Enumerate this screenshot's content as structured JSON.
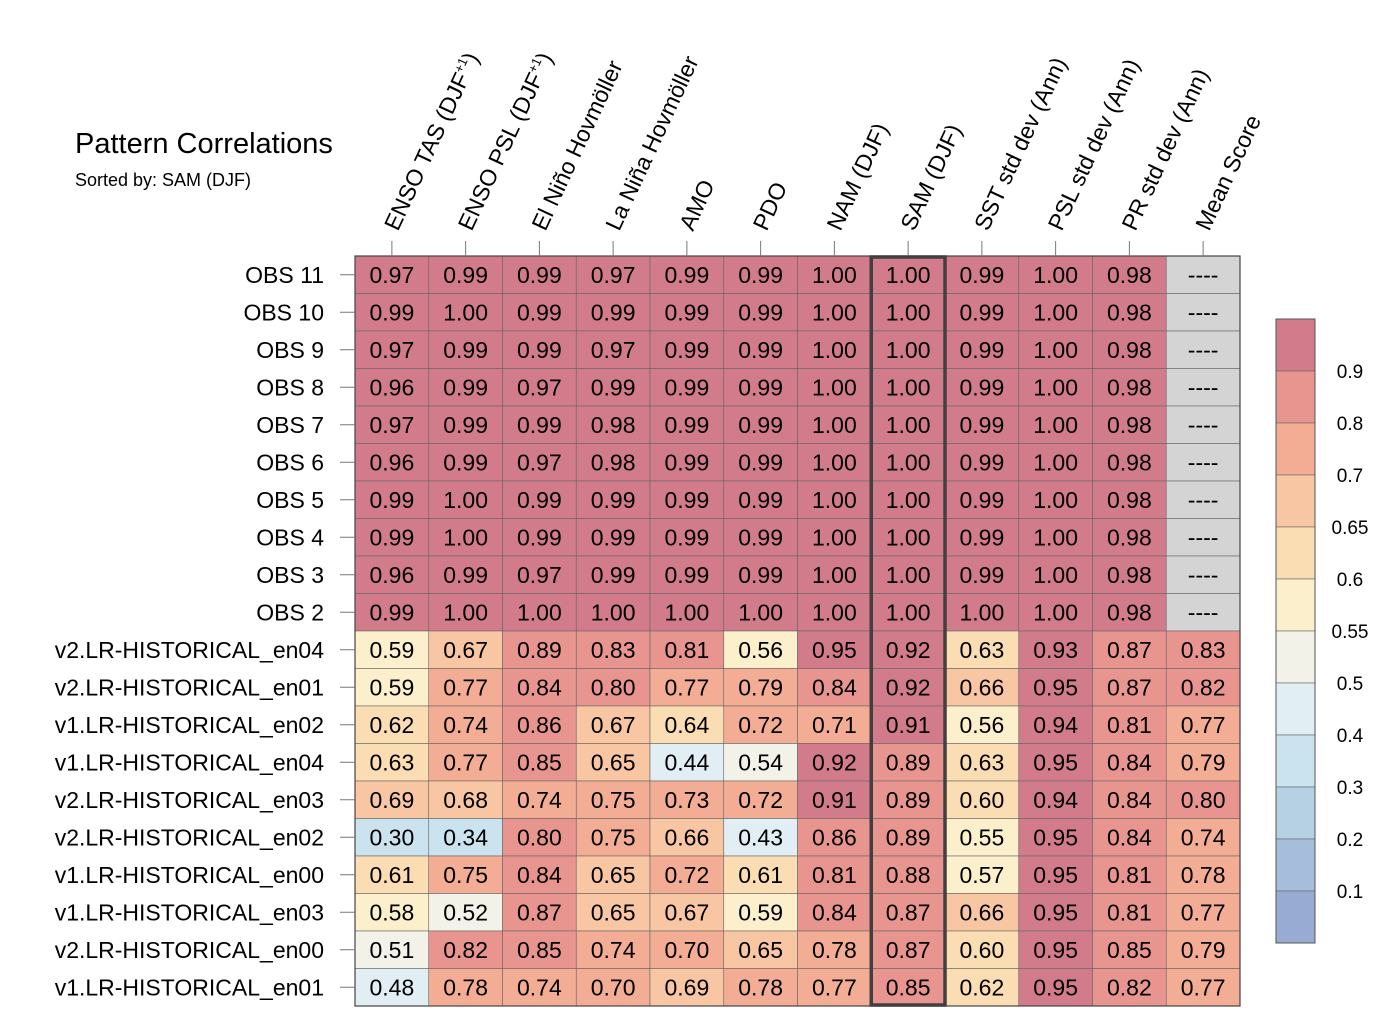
{
  "chart_data": {
    "type": "heatmap",
    "title": "Pattern Correlations",
    "subtitle": "Sorted by: SAM (DJF)",
    "highlighted_column": "SAM (DJF)",
    "columns": [
      {
        "pre": "ENSO TAS (DJF",
        "sup": "+1",
        "post": ")"
      },
      {
        "pre": "ENSO PSL (DJF",
        "sup": "+1",
        "post": ")"
      },
      {
        "pre": "El Niño Hovmöller",
        "sup": "",
        "post": ""
      },
      {
        "pre": "La Niña Hovmöller",
        "sup": "",
        "post": ""
      },
      {
        "pre": "AMO",
        "sup": "",
        "post": ""
      },
      {
        "pre": "PDO",
        "sup": "",
        "post": ""
      },
      {
        "pre": "NAM (DJF)",
        "sup": "",
        "post": ""
      },
      {
        "pre": "SAM (DJF)",
        "sup": "",
        "post": ""
      },
      {
        "pre": "SST std dev (Ann)",
        "sup": "",
        "post": ""
      },
      {
        "pre": "PSL std dev (Ann)",
        "sup": "",
        "post": ""
      },
      {
        "pre": "PR std dev (Ann)",
        "sup": "",
        "post": ""
      },
      {
        "pre": "Mean Score",
        "sup": "",
        "post": ""
      }
    ],
    "rows": [
      {
        "name": "OBS 11",
        "values": [
          "0.97",
          "0.99",
          "0.99",
          "0.97",
          "0.99",
          "0.99",
          "1.00",
          "1.00",
          "0.99",
          "1.00",
          "0.98",
          "----"
        ]
      },
      {
        "name": "OBS 10",
        "values": [
          "0.99",
          "1.00",
          "0.99",
          "0.99",
          "0.99",
          "0.99",
          "1.00",
          "1.00",
          "0.99",
          "1.00",
          "0.98",
          "----"
        ]
      },
      {
        "name": "OBS 9",
        "values": [
          "0.97",
          "0.99",
          "0.99",
          "0.97",
          "0.99",
          "0.99",
          "1.00",
          "1.00",
          "0.99",
          "1.00",
          "0.98",
          "----"
        ]
      },
      {
        "name": "OBS 8",
        "values": [
          "0.96",
          "0.99",
          "0.97",
          "0.99",
          "0.99",
          "0.99",
          "1.00",
          "1.00",
          "0.99",
          "1.00",
          "0.98",
          "----"
        ]
      },
      {
        "name": "OBS 7",
        "values": [
          "0.97",
          "0.99",
          "0.99",
          "0.98",
          "0.99",
          "0.99",
          "1.00",
          "1.00",
          "0.99",
          "1.00",
          "0.98",
          "----"
        ]
      },
      {
        "name": "OBS 6",
        "values": [
          "0.96",
          "0.99",
          "0.97",
          "0.98",
          "0.99",
          "0.99",
          "1.00",
          "1.00",
          "0.99",
          "1.00",
          "0.98",
          "----"
        ]
      },
      {
        "name": "OBS 5",
        "values": [
          "0.99",
          "1.00",
          "0.99",
          "0.99",
          "0.99",
          "0.99",
          "1.00",
          "1.00",
          "0.99",
          "1.00",
          "0.98",
          "----"
        ]
      },
      {
        "name": "OBS 4",
        "values": [
          "0.99",
          "1.00",
          "0.99",
          "0.99",
          "0.99",
          "0.99",
          "1.00",
          "1.00",
          "0.99",
          "1.00",
          "0.98",
          "----"
        ]
      },
      {
        "name": "OBS 3",
        "values": [
          "0.96",
          "0.99",
          "0.97",
          "0.99",
          "0.99",
          "0.99",
          "1.00",
          "1.00",
          "0.99",
          "1.00",
          "0.98",
          "----"
        ]
      },
      {
        "name": "OBS 2",
        "values": [
          "0.99",
          "1.00",
          "1.00",
          "1.00",
          "1.00",
          "1.00",
          "1.00",
          "1.00",
          "1.00",
          "1.00",
          "0.98",
          "----"
        ]
      },
      {
        "name": "v2.LR-HISTORICAL_en04",
        "values": [
          "0.59",
          "0.67",
          "0.89",
          "0.83",
          "0.81",
          "0.56",
          "0.95",
          "0.92",
          "0.63",
          "0.93",
          "0.87",
          "0.83"
        ]
      },
      {
        "name": "v2.LR-HISTORICAL_en01",
        "values": [
          "0.59",
          "0.77",
          "0.84",
          "0.80",
          "0.77",
          "0.79",
          "0.84",
          "0.92",
          "0.66",
          "0.95",
          "0.87",
          "0.82"
        ]
      },
      {
        "name": "v1.LR-HISTORICAL_en02",
        "values": [
          "0.62",
          "0.74",
          "0.86",
          "0.67",
          "0.64",
          "0.72",
          "0.71",
          "0.91",
          "0.56",
          "0.94",
          "0.81",
          "0.77"
        ]
      },
      {
        "name": "v1.LR-HISTORICAL_en04",
        "values": [
          "0.63",
          "0.77",
          "0.85",
          "0.65",
          "0.44",
          "0.54",
          "0.92",
          "0.89",
          "0.63",
          "0.95",
          "0.84",
          "0.79"
        ]
      },
      {
        "name": "v2.LR-HISTORICAL_en03",
        "values": [
          "0.69",
          "0.68",
          "0.74",
          "0.75",
          "0.73",
          "0.72",
          "0.91",
          "0.89",
          "0.60",
          "0.94",
          "0.84",
          "0.80"
        ]
      },
      {
        "name": "v2.LR-HISTORICAL_en02",
        "values": [
          "0.30",
          "0.34",
          "0.80",
          "0.75",
          "0.66",
          "0.43",
          "0.86",
          "0.89",
          "0.55",
          "0.95",
          "0.84",
          "0.74"
        ]
      },
      {
        "name": "v1.LR-HISTORICAL_en00",
        "values": [
          "0.61",
          "0.75",
          "0.84",
          "0.65",
          "0.72",
          "0.61",
          "0.81",
          "0.88",
          "0.57",
          "0.95",
          "0.81",
          "0.78"
        ]
      },
      {
        "name": "v1.LR-HISTORICAL_en03",
        "values": [
          "0.58",
          "0.52",
          "0.87",
          "0.65",
          "0.67",
          "0.59",
          "0.84",
          "0.87",
          "0.66",
          "0.95",
          "0.81",
          "0.77"
        ]
      },
      {
        "name": "v2.LR-HISTORICAL_en00",
        "values": [
          "0.51",
          "0.82",
          "0.85",
          "0.74",
          "0.70",
          "0.65",
          "0.78",
          "0.87",
          "0.60",
          "0.95",
          "0.85",
          "0.79"
        ]
      },
      {
        "name": "v1.LR-HISTORICAL_en01",
        "values": [
          "0.48",
          "0.78",
          "0.74",
          "0.70",
          "0.69",
          "0.78",
          "0.77",
          "0.85",
          "0.62",
          "0.95",
          "0.82",
          "0.77"
        ]
      }
    ],
    "colorbar": {
      "ticks": [
        "0.9",
        "0.8",
        "0.7",
        "0.65",
        "0.6",
        "0.55",
        "0.5",
        "0.4",
        "0.3",
        "0.2",
        "0.1"
      ],
      "colors_top_to_bottom": [
        "#d17b8b",
        "#e9958f",
        "#f3ad95",
        "#f8c6a2",
        "#fbddb4",
        "#fcefcc",
        "#f3f2e8",
        "#e1eff4",
        "#cbe3ee",
        "#b7d1e4",
        "#a6bedb",
        "#98abd2"
      ],
      "missing_color": "#d4d4d4"
    }
  }
}
